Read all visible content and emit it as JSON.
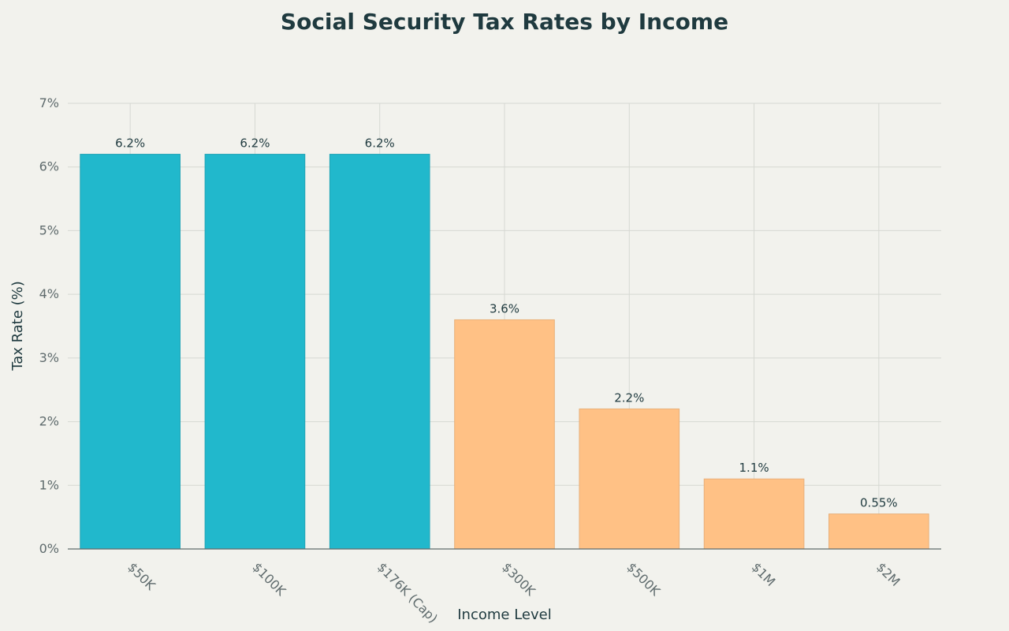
{
  "chart_data": {
    "type": "bar",
    "title": "Social Security Tax Rates by Income",
    "xlabel": "Income Level",
    "ylabel": "Tax Rate (%)",
    "categories": [
      "$50K",
      "$100K",
      "$176K (Cap)",
      "$300K",
      "$500K",
      "$1M",
      "$2M"
    ],
    "values": [
      6.2,
      6.2,
      6.2,
      3.6,
      2.2,
      1.1,
      0.55
    ],
    "data_labels": [
      "6.2%",
      "6.2%",
      "6.2%",
      "3.6%",
      "2.2%",
      "1.1%",
      "0.55%"
    ],
    "bar_colors": [
      "#21b8cc",
      "#21b8cc",
      "#21b8cc",
      "#ffc185",
      "#ffc185",
      "#ffc185",
      "#ffc185"
    ],
    "bar_stroke_colors": [
      "#1fa3b5",
      "#1fa3b5",
      "#1fa3b5",
      "#e8b07a",
      "#e8b07a",
      "#e8b07a",
      "#e8b07a"
    ],
    "ylim": [
      0,
      7
    ],
    "y_ticks": [
      0,
      1,
      2,
      3,
      4,
      5,
      6,
      7
    ],
    "y_tick_labels": [
      "0%",
      "1%",
      "2%",
      "3%",
      "4%",
      "5%",
      "6%",
      "7%"
    ],
    "grid": true,
    "legend": "none",
    "background_color": "#f2f2ed"
  }
}
